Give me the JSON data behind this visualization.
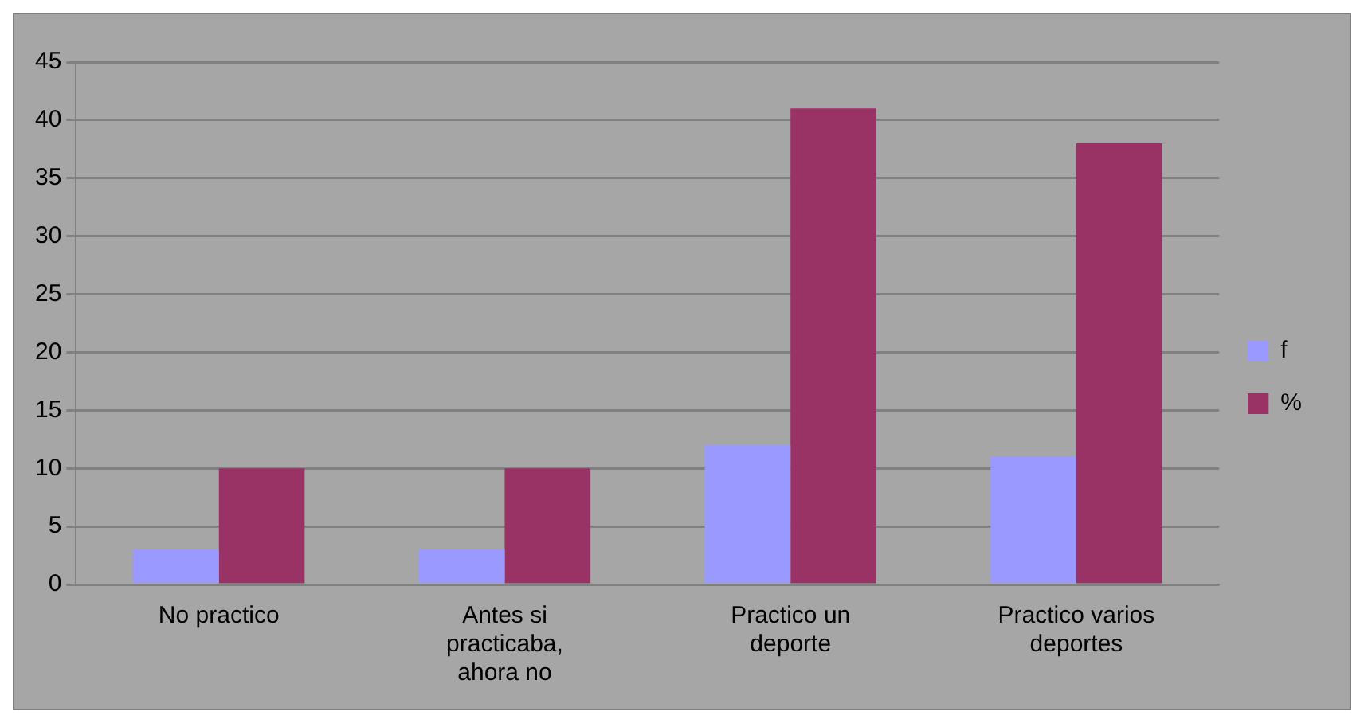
{
  "chart_data": {
    "type": "bar",
    "categories": [
      "No practico",
      "Antes si practicaba, ahora no",
      "Practico un deporte",
      "Practico varios deportes"
    ],
    "series": [
      {
        "name": "f",
        "color": "#9999ff",
        "values": [
          3,
          3,
          12,
          11
        ]
      },
      {
        "name": "%",
        "color": "#993366",
        "values": [
          10,
          10,
          41,
          38
        ]
      }
    ],
    "ylim": [
      0,
      45
    ],
    "yticks": [
      0,
      5,
      10,
      15,
      20,
      25,
      30,
      35,
      40,
      45
    ],
    "grid": "y",
    "legend": "right"
  }
}
